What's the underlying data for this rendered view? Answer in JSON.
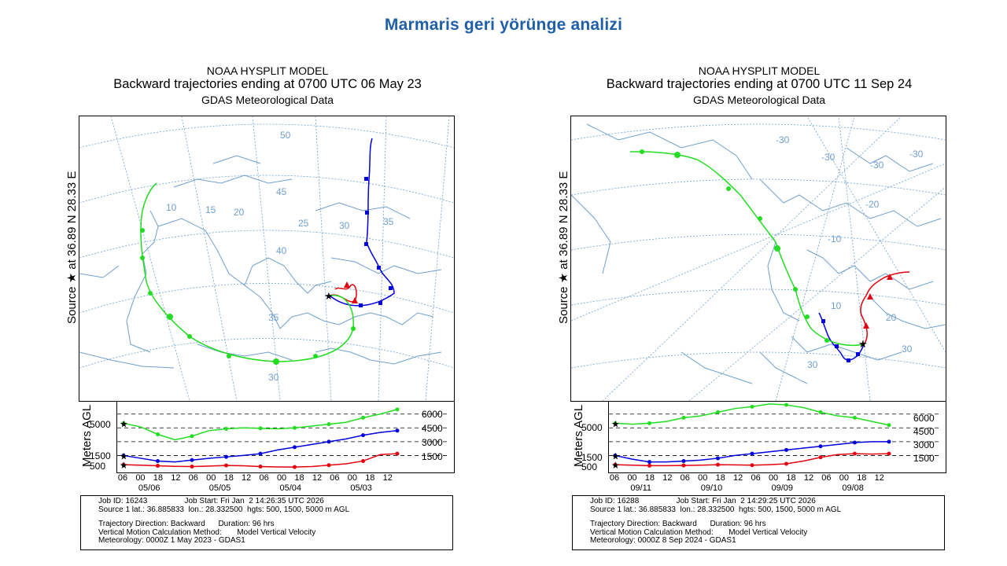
{
  "page": {
    "title": "Marmaris geri yörünge analizi"
  },
  "colors": {
    "title": "#1F5FA8",
    "map_lines": "#6F9FCF",
    "traj_500": "#E3000F",
    "traj_1500": "#0000DD",
    "traj_5000": "#22DD22"
  },
  "chart_data": [
    {
      "type": "line",
      "model": "NOAA HYSPLIT MODEL",
      "title": "Backward trajectories ending at 0700 UTC 06 May 23",
      "subtitle": "GDAS Meteorological Data",
      "source_label": "Source ★ at 36.89 N 28.33 E",
      "ylabel": "Meters AGL",
      "left_ticks": [
        "5000",
        "1500",
        "500"
      ],
      "right_ticks": [
        "6000",
        "4500",
        "3000",
        "1500"
      ],
      "map_labels": [
        "50",
        "45",
        "40",
        "35",
        "30",
        "25",
        "20",
        "15",
        "10",
        "35",
        "30"
      ],
      "hour_ticks": [
        "06",
        "00",
        "18",
        "12",
        "06",
        "00",
        "18",
        "12",
        "06",
        "00",
        "18",
        "12",
        "06",
        "00",
        "18",
        "12"
      ],
      "date_ticks": [
        "05/06",
        "05/05",
        "05/04",
        "05/03"
      ],
      "x_hours_back": [
        0,
        6,
        12,
        18,
        24,
        30,
        36,
        42,
        48,
        54,
        60,
        66,
        72,
        78,
        84,
        90,
        96
      ],
      "series": [
        {
          "name": "500 m AGL",
          "color": "#E3000F",
          "heights_m": [
            500,
            450,
            380,
            320,
            300,
            350,
            420,
            380,
            300,
            260,
            250,
            300,
            450,
            600,
            900,
            1600,
            1700
          ]
        },
        {
          "name": "1500 m AGL",
          "color": "#0000DD",
          "heights_m": [
            1500,
            1200,
            900,
            800,
            1000,
            1200,
            1350,
            1500,
            1700,
            2100,
            2400,
            2700,
            3000,
            3300,
            3700,
            4000,
            4200
          ]
        },
        {
          "name": "5000 m AGL",
          "color": "#22DD22",
          "heights_m": [
            5000,
            4600,
            3800,
            3200,
            3600,
            4200,
            4400,
            4500,
            4450,
            4400,
            4500,
            4700,
            4900,
            5100,
            5600,
            6000,
            6500
          ]
        }
      ],
      "info": {
        "line1": "Job ID: 16243                 Job Start: Fri Jan  2 14:26:35 UTC 2026",
        "line2": "Source 1 lat.: 36.885833  lon.: 28.332500  hgts: 500, 1500, 5000 m AGL",
        "line3": "Trajectory Direction: Backward      Duration: 96 hrs",
        "line4": "Vertical Motion Calculation Method:       Model Vertical Velocity",
        "line5": "Meteorology: 0000Z 1 May 2023 - GDAS1"
      }
    },
    {
      "type": "line",
      "model": "NOAA HYSPLIT MODEL",
      "title": "Backward trajectories ending at 0700 UTC 11 Sep 24",
      "subtitle": "GDAS Meteorological Data",
      "source_label": "Source ★ at 36.89 N 28.33 E",
      "ylabel": "Meters AGL",
      "left_ticks": [
        "5000",
        "1500",
        "500"
      ],
      "right_ticks": [
        "6000",
        "4500",
        "3000",
        "1500"
      ],
      "map_labels": [
        "-30",
        "-30",
        "-30",
        "-30",
        "-20",
        "-10",
        "10",
        "20",
        "30",
        "30"
      ],
      "hour_ticks": [
        "06",
        "00",
        "18",
        "12",
        "06",
        "00",
        "18",
        "12",
        "06",
        "00",
        "18",
        "12",
        "06",
        "00",
        "18",
        "12"
      ],
      "date_ticks": [
        "09/11",
        "09/10",
        "09/09",
        "09/08"
      ],
      "x_hours_back": [
        0,
        6,
        12,
        18,
        24,
        30,
        36,
        42,
        48,
        54,
        60,
        66,
        72,
        78,
        84,
        90,
        96
      ],
      "series": [
        {
          "name": "500 m AGL",
          "color": "#E3000F",
          "heights_m": [
            500,
            450,
            400,
            400,
            420,
            450,
            500,
            480,
            450,
            500,
            600,
            900,
            1300,
            1600,
            1700,
            1650,
            1700
          ]
        },
        {
          "name": "1500 m AGL",
          "color": "#0000DD",
          "heights_m": [
            1500,
            1100,
            800,
            800,
            900,
            1000,
            1200,
            1500,
            1700,
            1900,
            2100,
            2300,
            2500,
            2700,
            2900,
            3000,
            3000
          ]
        },
        {
          "name": "5000 m AGL",
          "color": "#22DD22",
          "heights_m": [
            5000,
            4900,
            5000,
            5200,
            5600,
            5800,
            6200,
            6600,
            6800,
            7100,
            7000,
            6700,
            6200,
            5800,
            5600,
            5200,
            4800
          ]
        }
      ],
      "info": {
        "line1": "Job ID: 16288                 Job Start: Fri Jan  2 14:29:25 UTC 2026",
        "line2": "Source 1 lat.: 36.885833  lon.: 28.332500  hgts: 500, 1500, 5000 m AGL",
        "line3": "Trajectory Direction: Backward      Duration: 96 hrs",
        "line4": "Vertical Motion Calculation Method:       Model Vertical Velocity",
        "line5": "Meteorology: 0000Z 8 Sep 2024 - GDAS1"
      }
    }
  ]
}
